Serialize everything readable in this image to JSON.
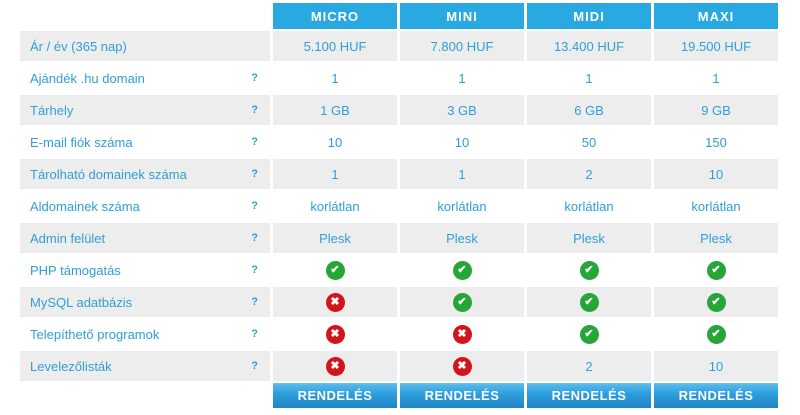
{
  "colors": {
    "accent": "#29a9e1",
    "row_alt": "#ededed",
    "text_blue": "#2e9fd9",
    "check_green": "#25a636",
    "cross_red": "#d2151b",
    "button_gradient_top": "#4fb6ea",
    "button_gradient_bottom": "#1d84c6"
  },
  "header": {
    "columns": [
      "MICRO",
      "MINI",
      "MIDI",
      "MAXI"
    ]
  },
  "rows": [
    {
      "label": "Ár / év (365 nap)",
      "help": "",
      "values": [
        "5.100 HUF",
        "7.800 HUF",
        "13.400 HUF",
        "19.500 HUF"
      ]
    },
    {
      "label": "Ajándék .hu domain",
      "help": "?",
      "values": [
        "1",
        "1",
        "1",
        "1"
      ]
    },
    {
      "label": "Tárhely",
      "help": "?",
      "values": [
        "1 GB",
        "3 GB",
        "6 GB",
        "9 GB"
      ]
    },
    {
      "label": "E-mail fiók száma",
      "help": "?",
      "values": [
        "10",
        "10",
        "50",
        "150"
      ]
    },
    {
      "label": "Tárolható domainek száma",
      "help": "?",
      "values": [
        "1",
        "1",
        "2",
        "10"
      ]
    },
    {
      "label": "Aldomainek száma",
      "help": "?",
      "values": [
        "korlátlan",
        "korlátlan",
        "korlátlan",
        "korlátlan"
      ]
    },
    {
      "label": "Admin felület",
      "help": "?",
      "values": [
        "Plesk",
        "Plesk",
        "Plesk",
        "Plesk"
      ]
    },
    {
      "label": "PHP támogatás",
      "help": "?",
      "values": [
        "check",
        "check",
        "check",
        "check"
      ]
    },
    {
      "label": "MySQL adatbázis",
      "help": "?",
      "values": [
        "cross",
        "check",
        "check",
        "check"
      ]
    },
    {
      "label": "Telepíthető programok",
      "help": "?",
      "values": [
        "cross",
        "cross",
        "check",
        "check"
      ]
    },
    {
      "label": "Levelezőlisták",
      "help": "?",
      "values": [
        "cross",
        "cross",
        "2",
        "10"
      ]
    }
  ],
  "footer": {
    "order_label": "RENDELÉS"
  },
  "icons": {
    "check": "✔",
    "cross": "✖",
    "help": "?"
  }
}
